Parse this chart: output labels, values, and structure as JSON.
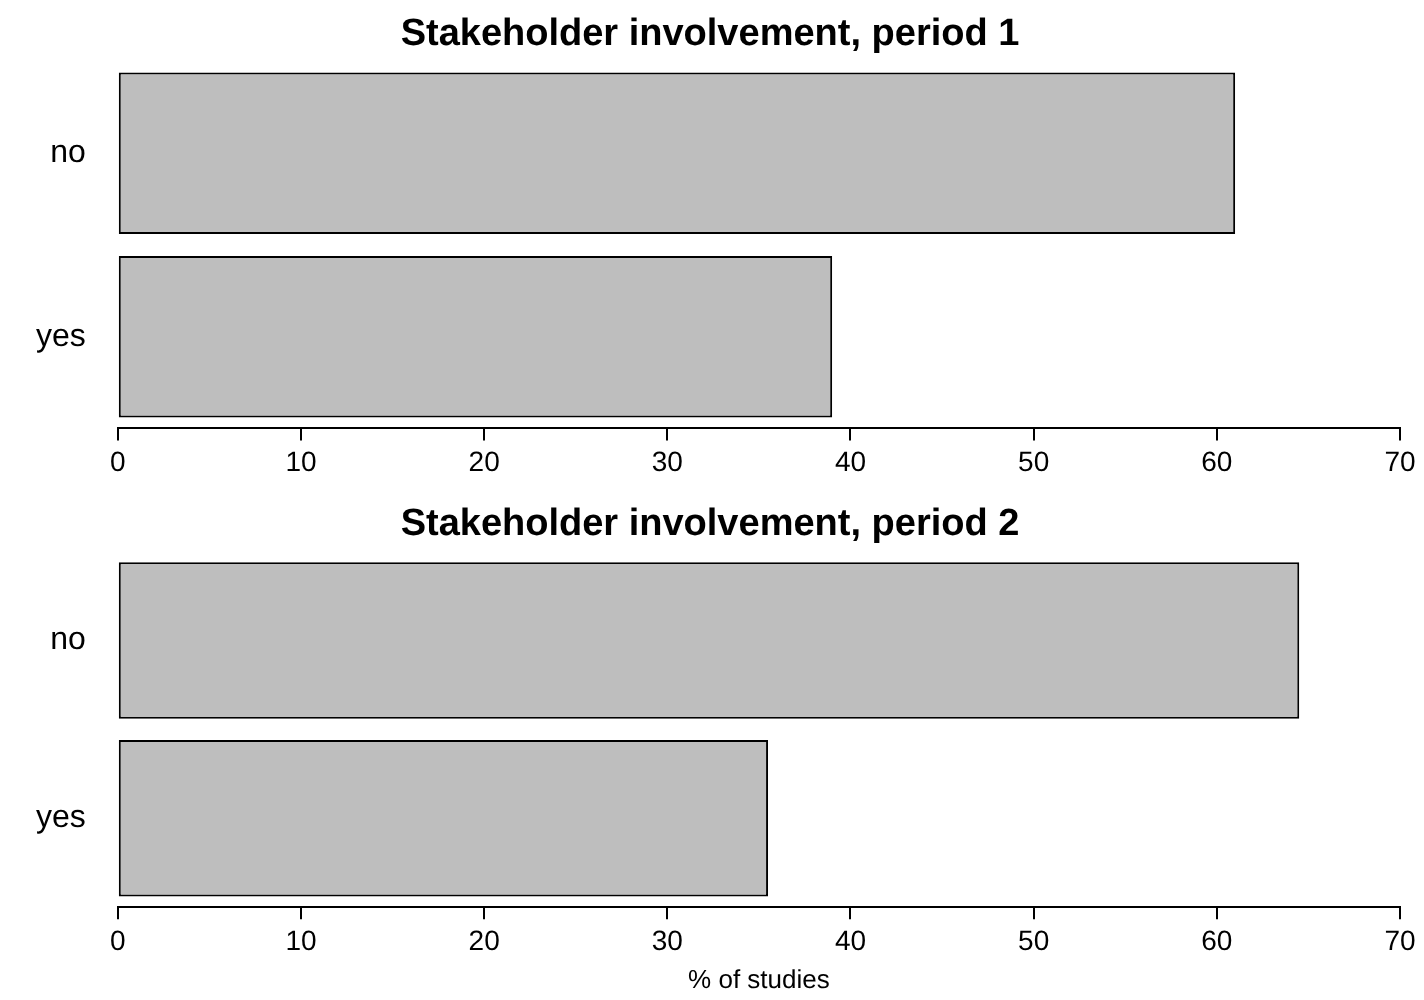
{
  "chart_data": [
    {
      "type": "bar",
      "orientation": "horizontal",
      "title": "Stakeholder involvement, period 1",
      "categories": [
        "no",
        "yes"
      ],
      "values": [
        61,
        39
      ],
      "color": "#bebebe",
      "xlim": [
        0,
        70
      ],
      "xticks": [
        0,
        10,
        20,
        30,
        40,
        50,
        60,
        70
      ],
      "grid": false,
      "legend": false
    },
    {
      "type": "bar",
      "orientation": "horizontal",
      "title": "Stakeholder involvement, period 2",
      "xlabel": "% of studies",
      "categories": [
        "no",
        "yes"
      ],
      "values": [
        64.5,
        35.5
      ],
      "color": "#bebebe",
      "xlim": [
        0,
        70
      ],
      "xticks": [
        0,
        10,
        20,
        30,
        40,
        50,
        60,
        70
      ],
      "grid": false,
      "legend": false
    }
  ]
}
